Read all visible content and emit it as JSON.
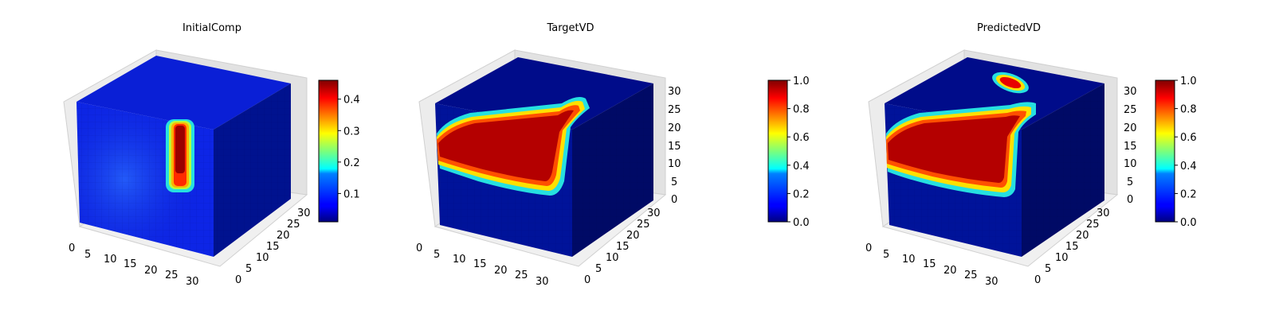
{
  "figure": {
    "panels": [
      {
        "title": "InitialComp",
        "colorbar": {
          "ticks": [
            "0.1",
            "0.2",
            "0.3",
            "0.4"
          ],
          "range": [
            0.01,
            0.46
          ]
        },
        "axes": {
          "x_ticks": [
            "0",
            "5",
            "10",
            "15",
            "20",
            "25",
            "30"
          ],
          "y_ticks": [
            "0",
            "5",
            "10",
            "15",
            "20",
            "25",
            "30"
          ],
          "z_ticks": []
        }
      },
      {
        "title": "TargetVD",
        "colorbar": {
          "ticks": [
            "0.0",
            "0.2",
            "0.4",
            "0.6",
            "0.8",
            "1.0"
          ],
          "range": [
            0,
            1
          ]
        },
        "axes": {
          "x_ticks": [
            "0",
            "5",
            "10",
            "15",
            "20",
            "25",
            "30"
          ],
          "y_ticks": [
            "0",
            "5",
            "10",
            "15",
            "20",
            "25",
            "30"
          ],
          "z_ticks": [
            "0",
            "5",
            "10",
            "15",
            "20",
            "25",
            "30"
          ]
        }
      },
      {
        "title": "PredictedVD",
        "colorbar": {
          "ticks": [
            "0.0",
            "0.2",
            "0.4",
            "0.6",
            "0.8",
            "1.0"
          ],
          "range": [
            0,
            1
          ]
        },
        "axes": {
          "x_ticks": [
            "0",
            "5",
            "10",
            "15",
            "20",
            "25",
            "30"
          ],
          "y_ticks": [
            "0",
            "5",
            "10",
            "15",
            "20",
            "25",
            "30"
          ],
          "z_ticks": [
            "0",
            "5",
            "10",
            "15",
            "20",
            "25",
            "30"
          ]
        }
      }
    ],
    "colormap": "jet",
    "background_color": "#ffffff"
  },
  "chart_data": [
    {
      "type": "heatmap",
      "title": "InitialComp",
      "render": "3d-voxel-cube",
      "grid_size": [
        32,
        32,
        32
      ],
      "xlim": [
        0,
        32
      ],
      "ylim": [
        0,
        32
      ],
      "zlim": [
        0,
        32
      ],
      "colorbar_range": [
        0.01,
        0.46
      ],
      "colorbar_ticks": [
        0.1,
        0.2,
        0.3,
        0.4
      ],
      "description_values": {
        "background_level": 0.03,
        "hotspot_peak": 0.46
      }
    },
    {
      "type": "heatmap",
      "title": "TargetVD",
      "render": "3d-voxel-cube",
      "grid_size": [
        32,
        32,
        32
      ],
      "xlim": [
        0,
        32
      ],
      "ylim": [
        0,
        32
      ],
      "zlim": [
        0,
        32
      ],
      "colorbar_range": [
        0,
        1
      ],
      "colorbar_ticks": [
        0.0,
        0.2,
        0.4,
        0.6,
        0.8,
        1.0
      ],
      "description_values": {
        "background_level": 0.0,
        "region_peak": 1.0
      }
    },
    {
      "type": "heatmap",
      "title": "PredictedVD",
      "render": "3d-voxel-cube",
      "grid_size": [
        32,
        32,
        32
      ],
      "xlim": [
        0,
        32
      ],
      "ylim": [
        0,
        32
      ],
      "zlim": [
        0,
        32
      ],
      "colorbar_range": [
        0,
        1
      ],
      "colorbar_ticks": [
        0.0,
        0.2,
        0.4,
        0.6,
        0.8,
        1.0
      ],
      "description_values": {
        "background_level": 0.0,
        "region_peak": 1.0
      }
    }
  ]
}
